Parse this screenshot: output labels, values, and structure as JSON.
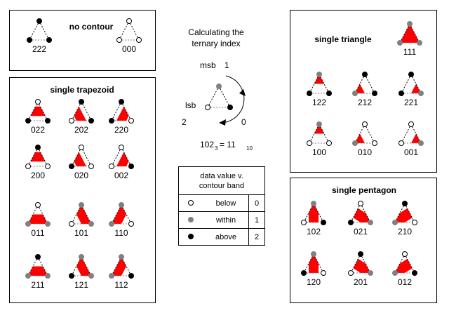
{
  "colors": {
    "fill": "#ff0000",
    "below": "#ffffff",
    "within": "#808080",
    "above": "#000000",
    "edge": "#000000",
    "base_edge": "#808080"
  },
  "panels": {
    "no_contour": {
      "title": "no contour",
      "glyphs": [
        {
          "code": "222",
          "label": "222"
        },
        {
          "code": "000",
          "label": "000"
        }
      ]
    },
    "single_trapezoid": {
      "title": "single trapezoid",
      "glyphs": [
        {
          "code": "022",
          "label": "022"
        },
        {
          "code": "202",
          "label": "202"
        },
        {
          "code": "220",
          "label": "220"
        },
        {
          "code": "200",
          "label": "200"
        },
        {
          "code": "020",
          "label": "020"
        },
        {
          "code": "002",
          "label": "002"
        },
        {
          "code": "011",
          "label": "011"
        },
        {
          "code": "101",
          "label": "101"
        },
        {
          "code": "110",
          "label": "110"
        },
        {
          "code": "211",
          "label": "211"
        },
        {
          "code": "121",
          "label": "121"
        },
        {
          "code": "112",
          "label": "112"
        }
      ]
    },
    "single_triangle": {
      "title": "single triangle",
      "glyphs": [
        {
          "code": "111",
          "label": "111"
        },
        {
          "code": "122",
          "label": "122"
        },
        {
          "code": "212",
          "label": "212"
        },
        {
          "code": "221",
          "label": "221"
        },
        {
          "code": "100",
          "label": "100"
        },
        {
          "code": "010",
          "label": "010"
        },
        {
          "code": "001",
          "label": "001"
        }
      ]
    },
    "single_pentagon": {
      "title": "single pentagon",
      "glyphs": [
        {
          "code": "102",
          "label": "102"
        },
        {
          "code": "021",
          "label": "021"
        },
        {
          "code": "210",
          "label": "210"
        },
        {
          "code": "120",
          "label": "120"
        },
        {
          "code": "201",
          "label": "201"
        },
        {
          "code": "012",
          "label": "012"
        }
      ]
    }
  },
  "index_diagram": {
    "title_line1": "Calculating the",
    "title_line2": "ternary index",
    "msb_label": "msb",
    "msb_weight": "1",
    "lsb_label": "lsb",
    "lsb_weight": "2",
    "mid_weight": "0",
    "example_code": "102",
    "example_value": "102",
    "example_base3": "3",
    "example_equals": "= 11",
    "example_base10": "10"
  },
  "legend": {
    "header_line1": "data value v.",
    "header_line2": "contour band",
    "rows": [
      {
        "state": "below",
        "label": "below",
        "value": "0"
      },
      {
        "state": "within",
        "label": "within",
        "value": "1"
      },
      {
        "state": "above",
        "label": "above",
        "value": "2"
      }
    ]
  }
}
